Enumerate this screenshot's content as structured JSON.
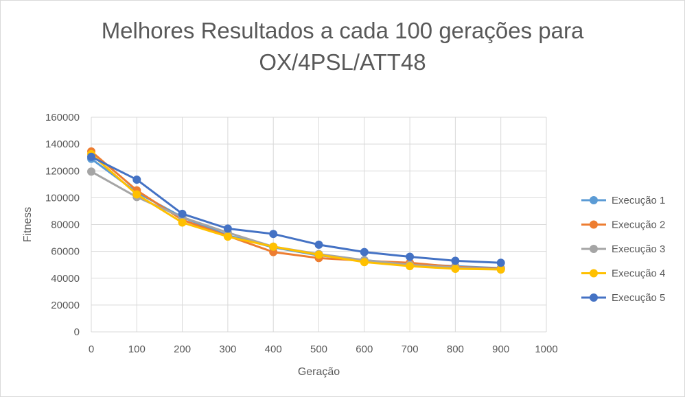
{
  "chart_data": {
    "type": "line",
    "title_lines": [
      "Melhores Resultados a cada 100 gerações para",
      "OX/4PSL/ATT48"
    ],
    "xlabel": "Geração",
    "ylabel": "Fitness",
    "xlim": [
      0,
      1000
    ],
    "ylim": [
      0,
      160000
    ],
    "x_ticks": [
      0,
      100,
      200,
      300,
      400,
      500,
      600,
      700,
      800,
      900,
      1000
    ],
    "y_ticks": [
      0,
      20000,
      40000,
      60000,
      80000,
      100000,
      120000,
      140000,
      160000
    ],
    "grid": true,
    "legend_position": "right",
    "x": [
      0,
      100,
      200,
      300,
      400,
      500,
      600,
      700,
      800,
      900
    ],
    "series": [
      {
        "name": "Execução 1",
        "color": "#5B9BD5",
        "values": [
          129000,
          104000,
          85500,
          72000,
          63000,
          57000,
          53500,
          50500,
          49000,
          47500
        ]
      },
      {
        "name": "Execução 2",
        "color": "#ED7D31",
        "values": [
          134500,
          105500,
          83500,
          71500,
          59500,
          55000,
          53000,
          51500,
          48500,
          47000
        ]
      },
      {
        "name": "Execução 3",
        "color": "#A5A5A5",
        "values": [
          119500,
          100500,
          85500,
          74000,
          63500,
          58000,
          53500,
          50000,
          48000,
          46500
        ]
      },
      {
        "name": "Execução 4",
        "color": "#FFC000",
        "values": [
          132500,
          102500,
          81500,
          71000,
          63500,
          57500,
          52000,
          49000,
          47000,
          46500
        ]
      },
      {
        "name": "Execução 5",
        "color": "#4472C4",
        "values": [
          130500,
          113500,
          88000,
          77000,
          73000,
          65000,
          59500,
          56000,
          53000,
          51500
        ]
      }
    ]
  }
}
